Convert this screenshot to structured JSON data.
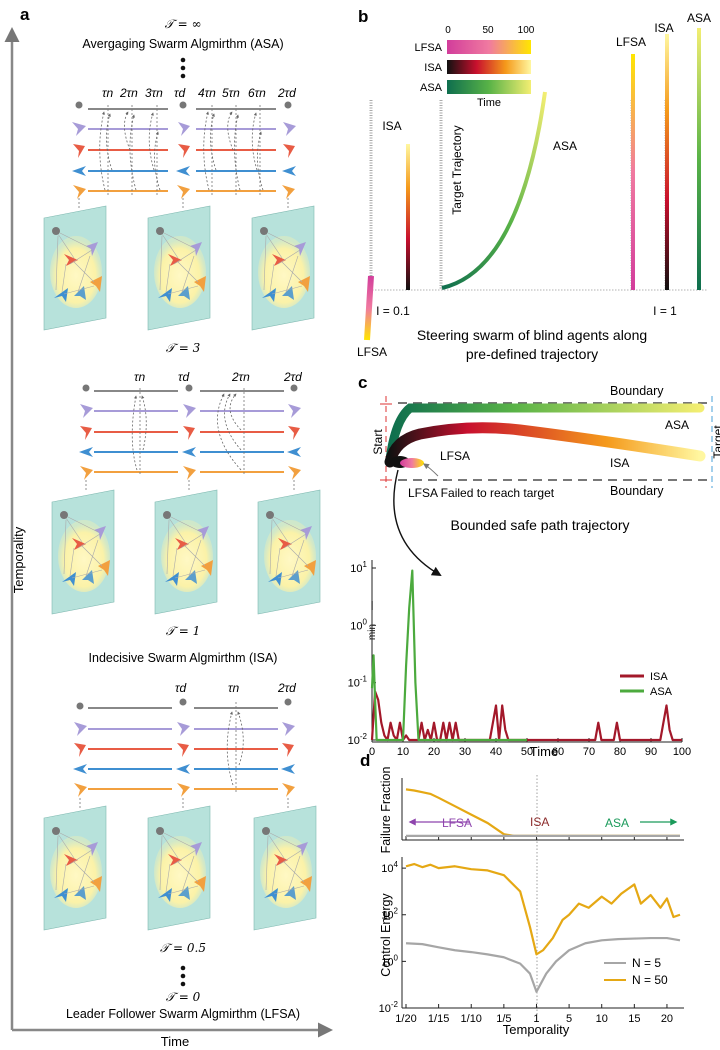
{
  "panel_a": {
    "label": "a",
    "axis_y": "Temporality",
    "axis_x": "Time",
    "T_inf": "𝒯 = ∞",
    "asa_title": "Avergaging Swarm Algmirthm (ASA)",
    "T3": "𝒯 = 3",
    "T1": "𝒯 = 1",
    "isa_title": "Indecisive Swarm Algmirthm (ISA)",
    "T05": "𝒯 = 0.5",
    "T0": "𝒯 = 0",
    "lfsa_title": "Leader Follower Swarm Algmirthm (LFSA)",
    "top_ticks": [
      "τn",
      "2τn",
      "3τn",
      "τd",
      "4τn",
      "5τn",
      "6τn",
      "2τd"
    ],
    "mid_ticks": [
      "τn",
      "τd",
      "2τn",
      "2τd"
    ],
    "bot_ticks": [
      "τd",
      "τn",
      "2τd"
    ]
  },
  "panel_b": {
    "label": "b",
    "legend_ticks": [
      "0",
      "50",
      "100"
    ],
    "legend_rows": [
      "LFSA",
      "ISA",
      "ASA"
    ],
    "legend_axis": "Time",
    "lbl_isa": "ISA",
    "lbl_target": "Target Trajectory",
    "lbl_asa": "ASA",
    "lbl_lfsa": "LFSA",
    "l01": "I = 0.1",
    "l1": "I = 1",
    "r_lfsa": "LFSA",
    "r_isa": "ISA",
    "r_asa": "ASA",
    "caption1": "Steering swarm of blind agents along",
    "caption2": "pre-defined trajectory"
  },
  "panel_c": {
    "label": "c",
    "boundary_top": "Boundary",
    "boundary_bottom": "Boundary",
    "start": "Start",
    "target": "Target",
    "asa": "ASA",
    "isa": "ISA",
    "lfsa": "LFSA",
    "failed": "LFSA Failed to reach target",
    "caption": "Bounded safe path trajectory"
  },
  "panel_d": {
    "label": "d",
    "top_ylabel": "Failure Fraction",
    "bottom_ylabel": "Control Energy",
    "xlabel": "Temporality",
    "left_arrow": "LFSA",
    "mid": "ISA",
    "right_arrow": "ASA",
    "legend": [
      "N = 5",
      "N = 50"
    ]
  },
  "chart_data": [
    {
      "type": "line",
      "title": "",
      "xlabel": "Time",
      "ylabel": "I min",
      "ylog": true,
      "xlim": [
        0,
        100
      ],
      "ylim": [
        0.01,
        10
      ],
      "x_ticks": [
        "0",
        "10",
        "20",
        "30",
        "40",
        "50",
        "60",
        "70",
        "80",
        "90",
        "100"
      ],
      "y_ticks": [
        "10^-2",
        "10^-1",
        "10^0",
        "10^1"
      ],
      "series": [
        {
          "name": "ISA",
          "color": "#a3182a",
          "x": [
            0,
            1,
            2,
            3,
            4,
            5,
            6,
            7,
            8,
            9,
            10,
            11,
            12,
            13,
            14,
            15,
            16,
            17,
            18,
            19,
            20,
            21,
            22,
            23,
            24,
            25,
            26,
            27,
            28,
            29,
            30,
            38,
            39,
            40,
            41,
            42,
            43,
            44,
            45,
            50,
            72,
            73,
            74,
            75,
            78,
            79,
            80,
            81,
            93,
            94,
            95,
            96,
            97,
            100
          ],
          "y": [
            0.01,
            0.07,
            0.05,
            0.02,
            0.012,
            0.01,
            0.02,
            0.012,
            0.01,
            0.02,
            0.01,
            0.012,
            0.01,
            0.01,
            0.01,
            0.01,
            0.02,
            0.01,
            0.015,
            0.01,
            0.02,
            0.01,
            0.01,
            0.02,
            0.01,
            0.02,
            0.01,
            0.02,
            0.01,
            0.01,
            0.01,
            0.01,
            0.02,
            0.04,
            0.01,
            0.04,
            0.015,
            0.01,
            0.01,
            0.01,
            0.01,
            0.02,
            0.01,
            0.01,
            0.01,
            0.02,
            0.01,
            0.01,
            0.01,
            0.02,
            0.04,
            0.015,
            0.01,
            0.01
          ]
        },
        {
          "name": "ASA",
          "color": "#4caa3e",
          "x": [
            0,
            0.5,
            1,
            1.5,
            2,
            3,
            9,
            10,
            11,
            12,
            13,
            14,
            15,
            20,
            50
          ],
          "y": [
            0.08,
            0.3,
            0.05,
            0.01,
            0.01,
            0.01,
            0.01,
            0.01,
            0.2,
            2,
            9,
            0.1,
            0.01,
            0.01,
            0.01
          ]
        }
      ]
    },
    {
      "type": "line",
      "title": "",
      "xlabel": "",
      "ylabel": "Failure Fraction",
      "x_categories": [
        "1/20",
        "1/15",
        "1/10",
        "1/5",
        "1",
        "5",
        "10",
        "15",
        "20"
      ],
      "ylim": [
        0,
        1
      ],
      "series": [
        {
          "name": "N = 50",
          "color": "#e5a814",
          "x": [
            0,
            0.25,
            0.5,
            0.75,
            1,
            1.5,
            2,
            2.5,
            3,
            3.3,
            4,
            5,
            6,
            7,
            8,
            8.4
          ],
          "y": [
            0.85,
            0.83,
            0.8,
            0.77,
            0.7,
            0.55,
            0.4,
            0.25,
            0.05,
            0.02,
            0.02,
            0.02,
            0.02,
            0.02,
            0.02,
            0.02
          ]
        },
        {
          "name": "N = 5",
          "color": "#a6a6a6",
          "x": [
            0,
            8.4
          ],
          "y": [
            0.02,
            0.02
          ]
        }
      ]
    },
    {
      "type": "line",
      "title": "",
      "xlabel": "Temporality",
      "ylabel": "Control Energy",
      "ylog": true,
      "x_categories": [
        "1/20",
        "1/15",
        "1/10",
        "1/5",
        "1",
        "5",
        "10",
        "15",
        "20"
      ],
      "ylim": [
        0.01,
        30000
      ],
      "y_ticks": [
        "10^-2",
        "10^0",
        "10^2",
        "10^4"
      ],
      "series": [
        {
          "name": "N = 5",
          "color": "#a6a6a6",
          "x": [
            0,
            0.5,
            1,
            1.5,
            2,
            2.5,
            3,
            3.5,
            3.8,
            4,
            4.3,
            4.6,
            5,
            5.5,
            6,
            6.5,
            7,
            7.5,
            8,
            8.4
          ],
          "y": [
            6,
            5.5,
            4,
            3,
            2.5,
            2,
            1.5,
            0.8,
            0.3,
            0.05,
            0.3,
            1,
            3,
            6,
            8,
            9,
            9.5,
            10,
            10,
            8
          ]
        },
        {
          "name": "N = 50",
          "color": "#e5a814",
          "x": [
            0,
            0.25,
            0.5,
            0.75,
            1,
            1.5,
            2,
            2.5,
            3,
            3.5,
            3.8,
            4,
            4.2,
            4.5,
            4.8,
            5,
            5.3,
            5.6,
            6,
            6.3,
            6.6,
            7,
            7.2,
            7.5,
            7.8,
            8,
            8.2,
            8.4
          ],
          "y": [
            12000,
            15000,
            11000,
            14000,
            10000,
            12000,
            9000,
            8000,
            5000,
            1000,
            30,
            2,
            3,
            10,
            60,
            100,
            300,
            200,
            600,
            300,
            800,
            2000,
            300,
            700,
            200,
            500,
            80,
            100
          ]
        }
      ]
    }
  ]
}
